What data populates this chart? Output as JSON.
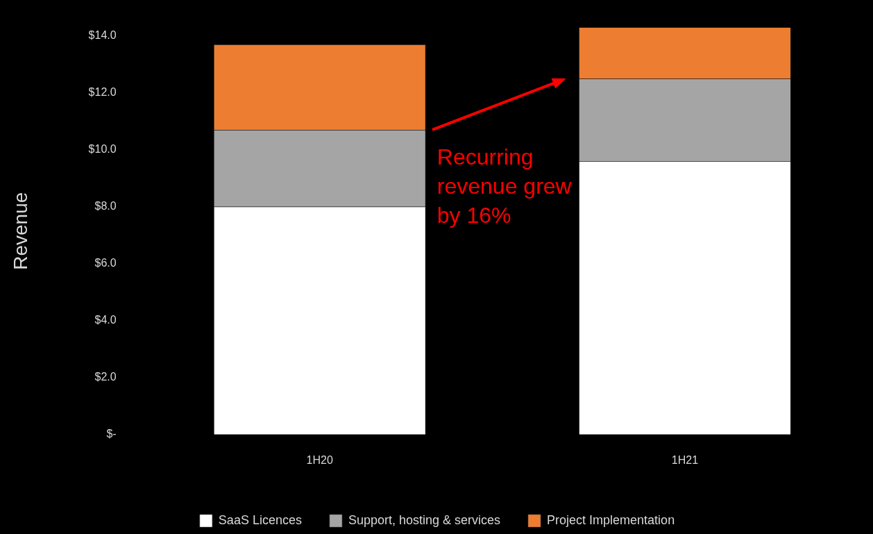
{
  "chart_data": {
    "type": "bar",
    "stacked": true,
    "ylabel": "Revenue",
    "categories": [
      "1H20",
      "1H21"
    ],
    "series": [
      {
        "name": "SaaS Licences",
        "color": "#ffffff",
        "values": [
          8.0,
          9.6
        ]
      },
      {
        "name": "Support, hosting & services",
        "color": "#a5a5a5",
        "values": [
          2.7,
          2.9
        ]
      },
      {
        "name": "Project Implementation",
        "color": "#ed7d31",
        "values": [
          3.0,
          1.8
        ]
      }
    ],
    "ylim": [
      0,
      14.3
    ],
    "yticks": [
      {
        "value": 0,
        "label": "$-"
      },
      {
        "value": 2,
        "label": "$2.0"
      },
      {
        "value": 4,
        "label": "$4.0"
      },
      {
        "value": 6,
        "label": "$6.0"
      },
      {
        "value": 8,
        "label": "$8.0"
      },
      {
        "value": 10,
        "label": "$10.0"
      },
      {
        "value": 12,
        "label": "$12.0"
      },
      {
        "value": 14,
        "label": "$14.0"
      }
    ],
    "grid": false,
    "legend": "bottom",
    "annotations": [
      "Recurring revenue grew by 16%"
    ]
  }
}
